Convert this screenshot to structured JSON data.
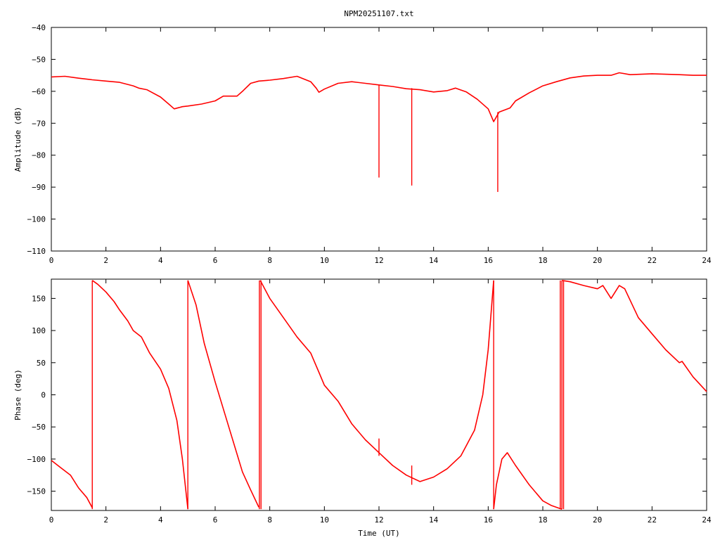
{
  "chart_data": [
    {
      "type": "line",
      "title": "NPM20251107.txt",
      "xlabel": "",
      "ylabel": "Amplitude (dB)",
      "xlim": [
        0,
        24
      ],
      "ylim": [
        -110,
        -40
      ],
      "xticks": [
        0,
        2,
        4,
        6,
        8,
        10,
        12,
        14,
        16,
        18,
        20,
        22,
        24
      ],
      "yticks": [
        -40,
        -50,
        -60,
        -70,
        -80,
        -90,
        -100,
        -110
      ],
      "grid": false,
      "color": "#ff0000",
      "series": [
        {
          "values": [
            [
              0,
              -55.5
            ],
            [
              0.5,
              -55.3
            ],
            [
              1,
              -55.9
            ],
            [
              1.5,
              -56.4
            ],
            [
              2,
              -56.8
            ],
            [
              2.5,
              -57.2
            ],
            [
              3,
              -58.3
            ],
            [
              3.2,
              -59
            ],
            [
              3.5,
              -59.5
            ],
            [
              4,
              -61.8
            ],
            [
              4.3,
              -64
            ],
            [
              4.5,
              -65.5
            ],
            [
              4.8,
              -64.8
            ],
            [
              5,
              -64.6
            ],
            [
              5.5,
              -64
            ],
            [
              6,
              -63
            ],
            [
              6.3,
              -61.5
            ],
            [
              6.8,
              -61.5
            ],
            [
              7,
              -60
            ],
            [
              7.3,
              -57.5
            ],
            [
              7.6,
              -56.8
            ],
            [
              8,
              -56.5
            ],
            [
              8.5,
              -56
            ],
            [
              9,
              -55.3
            ],
            [
              9.5,
              -57
            ],
            [
              9.7,
              -59
            ],
            [
              9.8,
              -60.3
            ],
            [
              10,
              -59.3
            ],
            [
              10.5,
              -57.5
            ],
            [
              11,
              -57
            ],
            [
              11.5,
              -57.5
            ],
            [
              12,
              -58
            ],
            [
              12.5,
              -58.5
            ],
            [
              13,
              -59.2
            ],
            [
              13.5,
              -59.5
            ],
            [
              14,
              -60.2
            ],
            [
              14.5,
              -59.8
            ],
            [
              14.8,
              -59
            ],
            [
              15.2,
              -60.2
            ],
            [
              15.6,
              -62.5
            ],
            [
              16,
              -65.5
            ],
            [
              16.2,
              -69.5
            ],
            [
              16.3,
              -68
            ],
            [
              16.4,
              -66.5
            ],
            [
              16.8,
              -65.2
            ],
            [
              17,
              -63
            ],
            [
              17.5,
              -60.5
            ],
            [
              18,
              -58.3
            ],
            [
              18.5,
              -57
            ],
            [
              19,
              -55.8
            ],
            [
              19.5,
              -55.2
            ],
            [
              20,
              -55
            ],
            [
              20.5,
              -55
            ],
            [
              20.8,
              -54.2
            ],
            [
              21.2,
              -54.8
            ],
            [
              22,
              -54.5
            ],
            [
              23,
              -54.8
            ],
            [
              23.5,
              -55
            ],
            [
              24,
              -55
            ]
          ]
        }
      ],
      "spikes": [
        {
          "x": 12.0,
          "from": -58,
          "to": -87
        },
        {
          "x": 13.2,
          "from": -59,
          "to": -89.5
        },
        {
          "x": 16.35,
          "from": -66.5,
          "to": -91.5
        }
      ]
    },
    {
      "type": "line",
      "title": "",
      "xlabel": "Time (UT)",
      "ylabel": "Phase (deg)",
      "xlim": [
        0,
        24
      ],
      "ylim": [
        -180,
        180
      ],
      "xticks": [
        0,
        2,
        4,
        6,
        8,
        10,
        12,
        14,
        16,
        18,
        20,
        22,
        24
      ],
      "yticks": [
        150,
        100,
        50,
        0,
        -50,
        -100,
        -150
      ],
      "grid": false,
      "color": "#ff0000",
      "series": [
        {
          "values": [
            [
              0,
              -102
            ],
            [
              0.3,
              -112
            ],
            [
              0.7,
              -125
            ],
            [
              1,
              -145
            ],
            [
              1.3,
              -160
            ],
            [
              1.5,
              -176
            ],
            [
              null,
              null
            ],
            [
              1.5,
              178
            ],
            [
              1.7,
              172
            ],
            [
              2,
              160
            ],
            [
              2.3,
              145
            ],
            [
              2.5,
              132
            ],
            [
              2.8,
              115
            ],
            [
              3,
              100
            ],
            [
              3.3,
              90
            ],
            [
              3.6,
              65
            ],
            [
              4,
              40
            ],
            [
              4.3,
              10
            ],
            [
              4.6,
              -40
            ],
            [
              4.8,
              -100
            ],
            [
              5.0,
              -178
            ],
            [
              null,
              null
            ],
            [
              5.0,
              178
            ],
            [
              5.3,
              140
            ],
            [
              5.6,
              80
            ],
            [
              6,
              20
            ],
            [
              6.5,
              -50
            ],
            [
              7,
              -120
            ],
            [
              7.3,
              -148
            ],
            [
              7.6,
              -175
            ],
            [
              null,
              null
            ],
            [
              7.65,
              178
            ],
            [
              8,
              150
            ],
            [
              8.5,
              120
            ],
            [
              9,
              90
            ],
            [
              9.5,
              65
            ],
            [
              9.8,
              35
            ],
            [
              10,
              15
            ],
            [
              10.5,
              -10
            ],
            [
              11,
              -45
            ],
            [
              11.5,
              -70
            ],
            [
              12,
              -90
            ],
            [
              12.5,
              -110
            ],
            [
              13,
              -125
            ],
            [
              13.5,
              -135
            ],
            [
              14,
              -128
            ],
            [
              14.5,
              -115
            ],
            [
              15,
              -95
            ],
            [
              15.5,
              -55
            ],
            [
              15.8,
              0
            ],
            [
              16.0,
              70
            ],
            [
              16.2,
              178
            ],
            [
              null,
              null
            ],
            [
              16.2,
              -178
            ],
            [
              16.3,
              -140
            ],
            [
              16.5,
              -100
            ],
            [
              16.7,
              -90
            ],
            [
              17,
              -110
            ],
            [
              17.5,
              -140
            ],
            [
              18,
              -165
            ],
            [
              18.3,
              -172
            ],
            [
              18.7,
              -178
            ],
            [
              null,
              null
            ],
            [
              18.7,
              178
            ],
            [
              19,
              176
            ],
            [
              19.5,
              170
            ],
            [
              20,
              165
            ],
            [
              20.2,
              170
            ],
            [
              20.5,
              150
            ],
            [
              20.8,
              170
            ],
            [
              21,
              165
            ],
            [
              21.5,
              120
            ],
            [
              22,
              95
            ],
            [
              22.5,
              70
            ],
            [
              23,
              50
            ],
            [
              23.1,
              52
            ],
            [
              23.5,
              28
            ],
            [
              24,
              5
            ]
          ]
        }
      ],
      "spikes": [
        {
          "x": 1.5,
          "from": -178,
          "to": 178
        },
        {
          "x": 5.0,
          "from": -178,
          "to": 178
        },
        {
          "x": 7.62,
          "from": -178,
          "to": 178
        },
        {
          "x": 7.68,
          "from": -178,
          "to": 178
        },
        {
          "x": 12.0,
          "from": -68,
          "to": -95
        },
        {
          "x": 13.2,
          "from": -110,
          "to": -140
        },
        {
          "x": 16.2,
          "from": -178,
          "to": 178
        },
        {
          "x": 18.64,
          "from": -178,
          "to": 178
        },
        {
          "x": 18.7,
          "from": -178,
          "to": 178
        },
        {
          "x": 18.76,
          "from": -178,
          "to": 178
        }
      ]
    }
  ]
}
